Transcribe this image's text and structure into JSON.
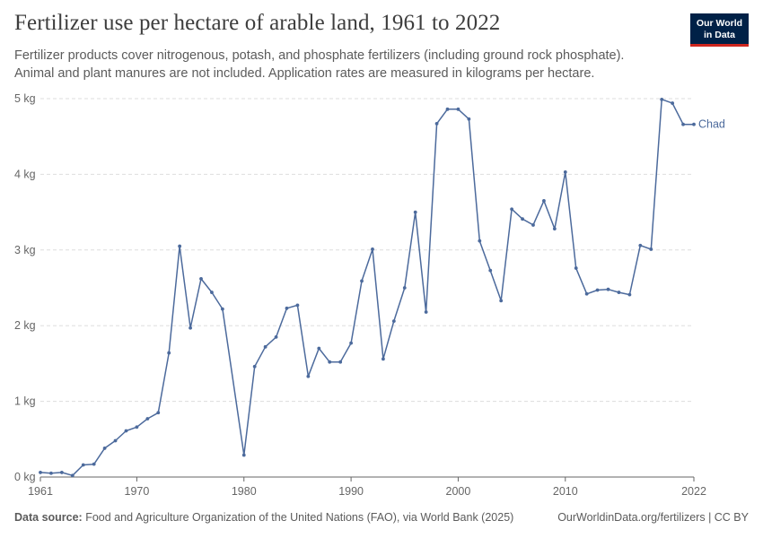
{
  "header": {
    "title": "Fertilizer use per hectare of arable land, 1961 to 2022",
    "subtitle_line1": "Fertilizer products cover nitrogenous, potash, and phosphate fertilizers (including ground rock phosphate).",
    "subtitle_line2": "Animal and plant manures are not included. Application rates are measured in kilograms per hectare.",
    "logo_line1": "Our World",
    "logo_line2": "in Data"
  },
  "footer": {
    "source_label": "Data source:",
    "source_text": "Food and Agriculture Organization of the United Nations (FAO), via World Bank (2025)",
    "right_text": "OurWorldinData.org/fertilizers | CC BY"
  },
  "colors": {
    "series": "#4c6a9c",
    "grid": "#dddddd",
    "axis": "#666666",
    "logo_bg": "#002147",
    "logo_accent": "#ce261e"
  },
  "chart_data": {
    "type": "line",
    "title": "Fertilizer use per hectare of arable land, 1961 to 2022",
    "xlim": [
      1961,
      2022
    ],
    "ylim": [
      0,
      5
    ],
    "y_ticks": [
      0,
      1,
      2,
      3,
      4,
      5
    ],
    "y_tick_labels": [
      "0 kg",
      "1 kg",
      "2 kg",
      "3 kg",
      "4 kg",
      "5 kg"
    ],
    "x_ticks": [
      1961,
      1970,
      1980,
      1990,
      2000,
      2010,
      2022
    ],
    "x_tick_labels": [
      "1961",
      "1970",
      "1980",
      "1990",
      "2000",
      "2010",
      "2022"
    ],
    "grid": "horizontal dashed",
    "series": [
      {
        "name": "Chad",
        "x": [
          1961,
          1962,
          1963,
          1964,
          1965,
          1966,
          1967,
          1968,
          1969,
          1970,
          1971,
          1972,
          1973,
          1974,
          1975,
          1976,
          1977,
          1978,
          1980,
          1981,
          1982,
          1983,
          1984,
          1985,
          1986,
          1987,
          1988,
          1989,
          1990,
          1991,
          1992,
          1993,
          1994,
          1995,
          1996,
          1997,
          1998,
          1999,
          2000,
          2001,
          2002,
          2003,
          2004,
          2005,
          2006,
          2007,
          2008,
          2009,
          2010,
          2011,
          2012,
          2013,
          2014,
          2015,
          2016,
          2017,
          2018,
          2019,
          2020,
          2021,
          2022
        ],
        "y": [
          0.06,
          0.05,
          0.06,
          0.02,
          0.16,
          0.17,
          0.38,
          0.48,
          0.61,
          0.66,
          0.77,
          0.85,
          1.64,
          3.05,
          1.97,
          2.62,
          2.44,
          2.22,
          0.29,
          1.46,
          1.72,
          1.85,
          2.23,
          2.27,
          1.33,
          1.7,
          1.52,
          1.52,
          1.77,
          2.59,
          3.01,
          1.56,
          2.06,
          2.5,
          3.5,
          2.18,
          4.67,
          4.86,
          4.86,
          4.73,
          3.12,
          2.73,
          2.33,
          3.54,
          3.41,
          3.33,
          3.65,
          3.28,
          4.03,
          2.76,
          2.42,
          2.47,
          2.48,
          2.44,
          2.41,
          3.06,
          3.01,
          4.99,
          4.94,
          4.66,
          4.66
        ]
      }
    ]
  }
}
